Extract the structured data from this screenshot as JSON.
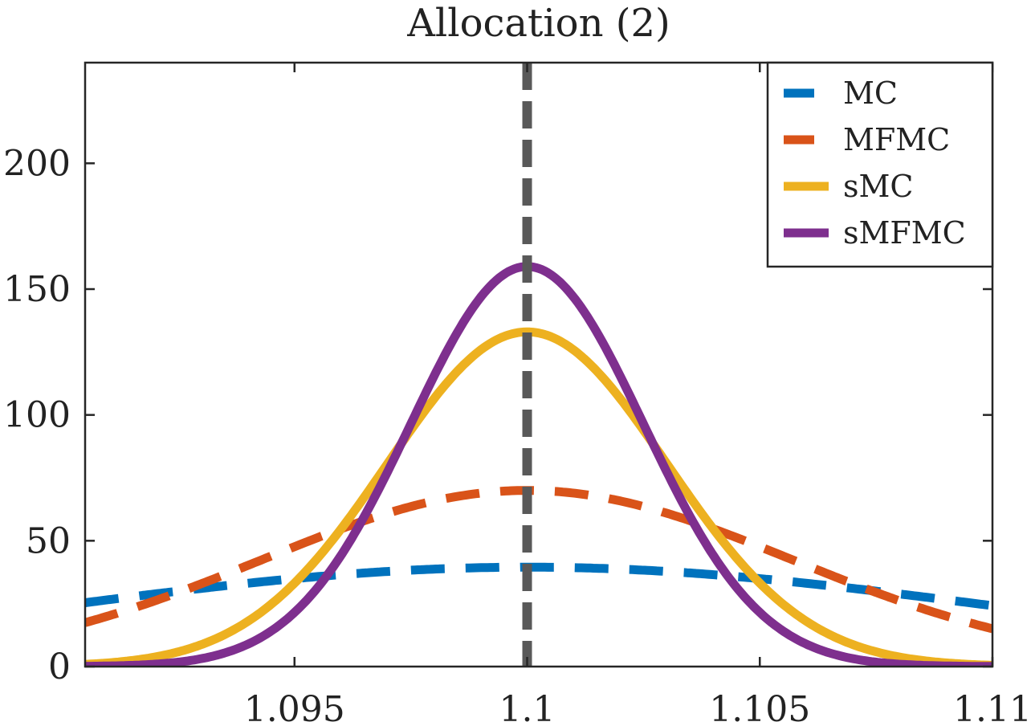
{
  "chart_data": {
    "type": "line",
    "title": "Allocation (2)",
    "xlabel": "",
    "ylabel": "",
    "xlim": [
      1.0905,
      1.11
    ],
    "ylim": [
      0,
      240
    ],
    "x_ticks": [
      1.095,
      1.1,
      1.105,
      1.11
    ],
    "x_tick_labels": [
      "1.095",
      "1.1",
      "1.105",
      "1.11"
    ],
    "y_ticks": [
      0,
      50,
      100,
      150,
      200
    ],
    "y_tick_labels": [
      "0",
      "50",
      "100",
      "150",
      "200"
    ],
    "grid": false,
    "legend_position": "top-right",
    "reference_line": {
      "x": 1.1,
      "color": "#595959",
      "style": "dashed"
    },
    "series": [
      {
        "name": "MC",
        "color": "#0072BD",
        "style": "dashed",
        "peak_x": 1.1,
        "peak_y": 39.5,
        "sigma": 0.0101
      },
      {
        "name": "MFMC",
        "color": "#D95319",
        "style": "dashed",
        "peak_x": 1.1,
        "peak_y": 70,
        "sigma": 0.0057
      },
      {
        "name": "sMC",
        "color": "#EDB120",
        "style": "solid",
        "peak_x": 1.1,
        "peak_y": 133,
        "sigma": 0.003
      },
      {
        "name": "sMFMC",
        "color": "#7E2F8E",
        "style": "solid",
        "peak_x": 1.1,
        "peak_y": 159,
        "sigma": 0.0025
      }
    ]
  }
}
